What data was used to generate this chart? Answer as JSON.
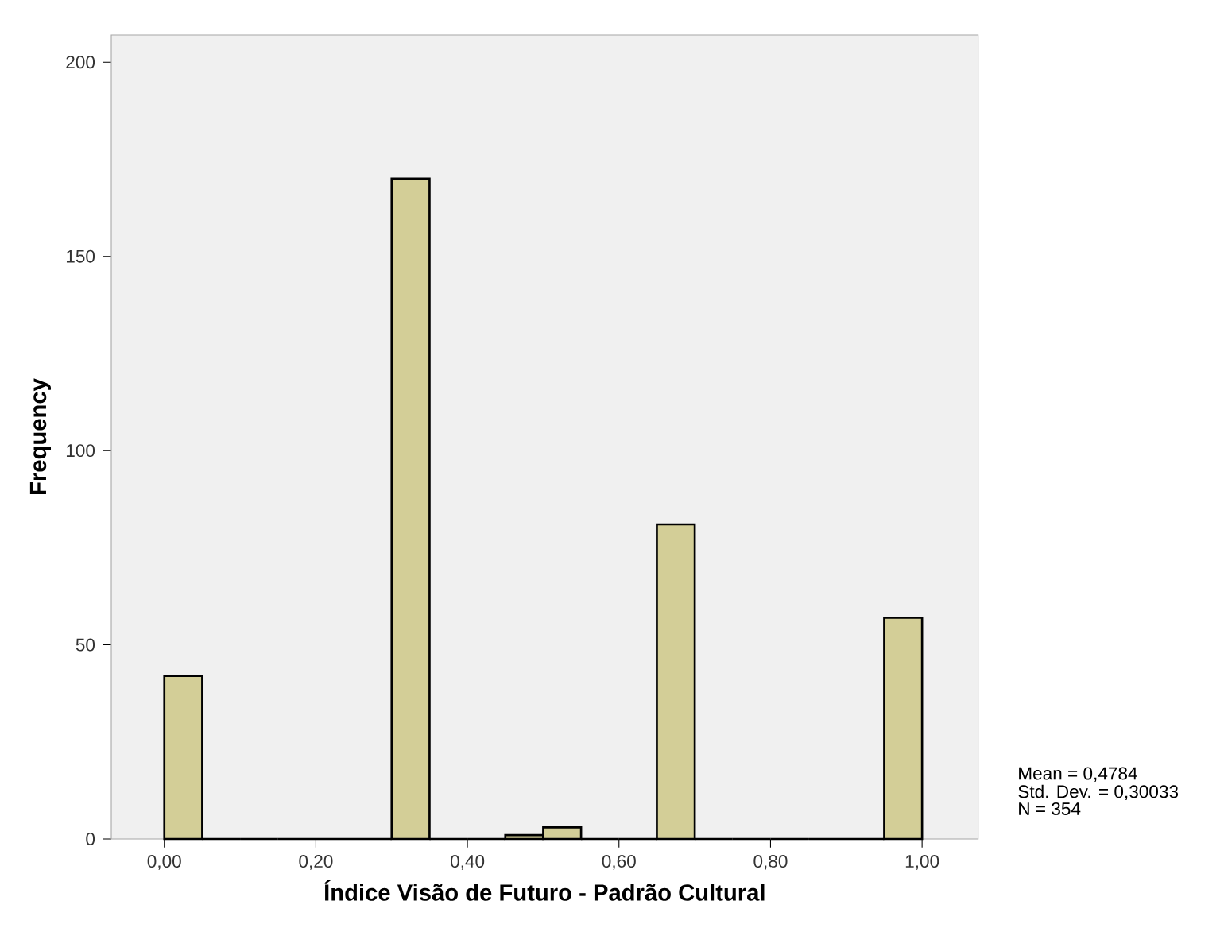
{
  "chart_data": {
    "type": "histogram",
    "xlabel": "Índice Visão de Futuro - Padrão Cultural",
    "ylabel": "Frequency",
    "bins": [
      0,
      0.05,
      0.1,
      0.15,
      0.2,
      0.25,
      0.3,
      0.35,
      0.4,
      0.45,
      0.5,
      0.55,
      0.6,
      0.65,
      0.7,
      0.75,
      0.8,
      0.85,
      0.9,
      0.95,
      1.0
    ],
    "values": [
      42,
      0,
      0,
      0,
      0,
      0,
      170,
      0,
      0,
      1,
      3,
      0,
      0,
      81,
      0,
      0,
      0,
      0,
      0,
      57
    ],
    "color": "#d3ce97",
    "xlim": [
      -0.07,
      1.074
    ],
    "ylim": [
      0,
      207
    ],
    "xticks": [
      {
        "value": 0,
        "label": "0,00"
      },
      {
        "value": 0.2,
        "label": "0,20"
      },
      {
        "value": 0.4,
        "label": "0,40"
      },
      {
        "value": 0.6,
        "label": "0,60"
      },
      {
        "value": 0.8,
        "label": "0,80"
      },
      {
        "value": 1.0,
        "label": "1,00"
      }
    ],
    "yticks": [
      0,
      50,
      100,
      150,
      200
    ],
    "annotations": [
      "Mean = 0,4784",
      "Std. Dev. = 0,30033",
      "N = 354"
    ],
    "grid": false
  }
}
